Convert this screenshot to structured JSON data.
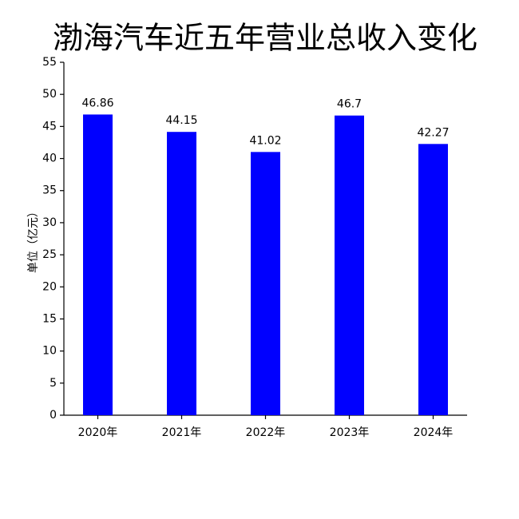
{
  "chart_data": {
    "type": "bar",
    "title": "渤海汽车近五年营业总收入变化",
    "y_label": "单位（亿元）",
    "categories": [
      "2020年",
      "2021年",
      "2022年",
      "2023年",
      "2024年"
    ],
    "values": [
      46.86,
      44.15,
      41.02,
      46.7,
      42.27
    ],
    "color": "#0000ff",
    "ylim": [
      0,
      55
    ],
    "yticks": [
      0,
      5,
      10,
      15,
      20,
      25,
      30,
      35,
      40,
      45,
      50,
      55
    ],
    "grid": false
  }
}
